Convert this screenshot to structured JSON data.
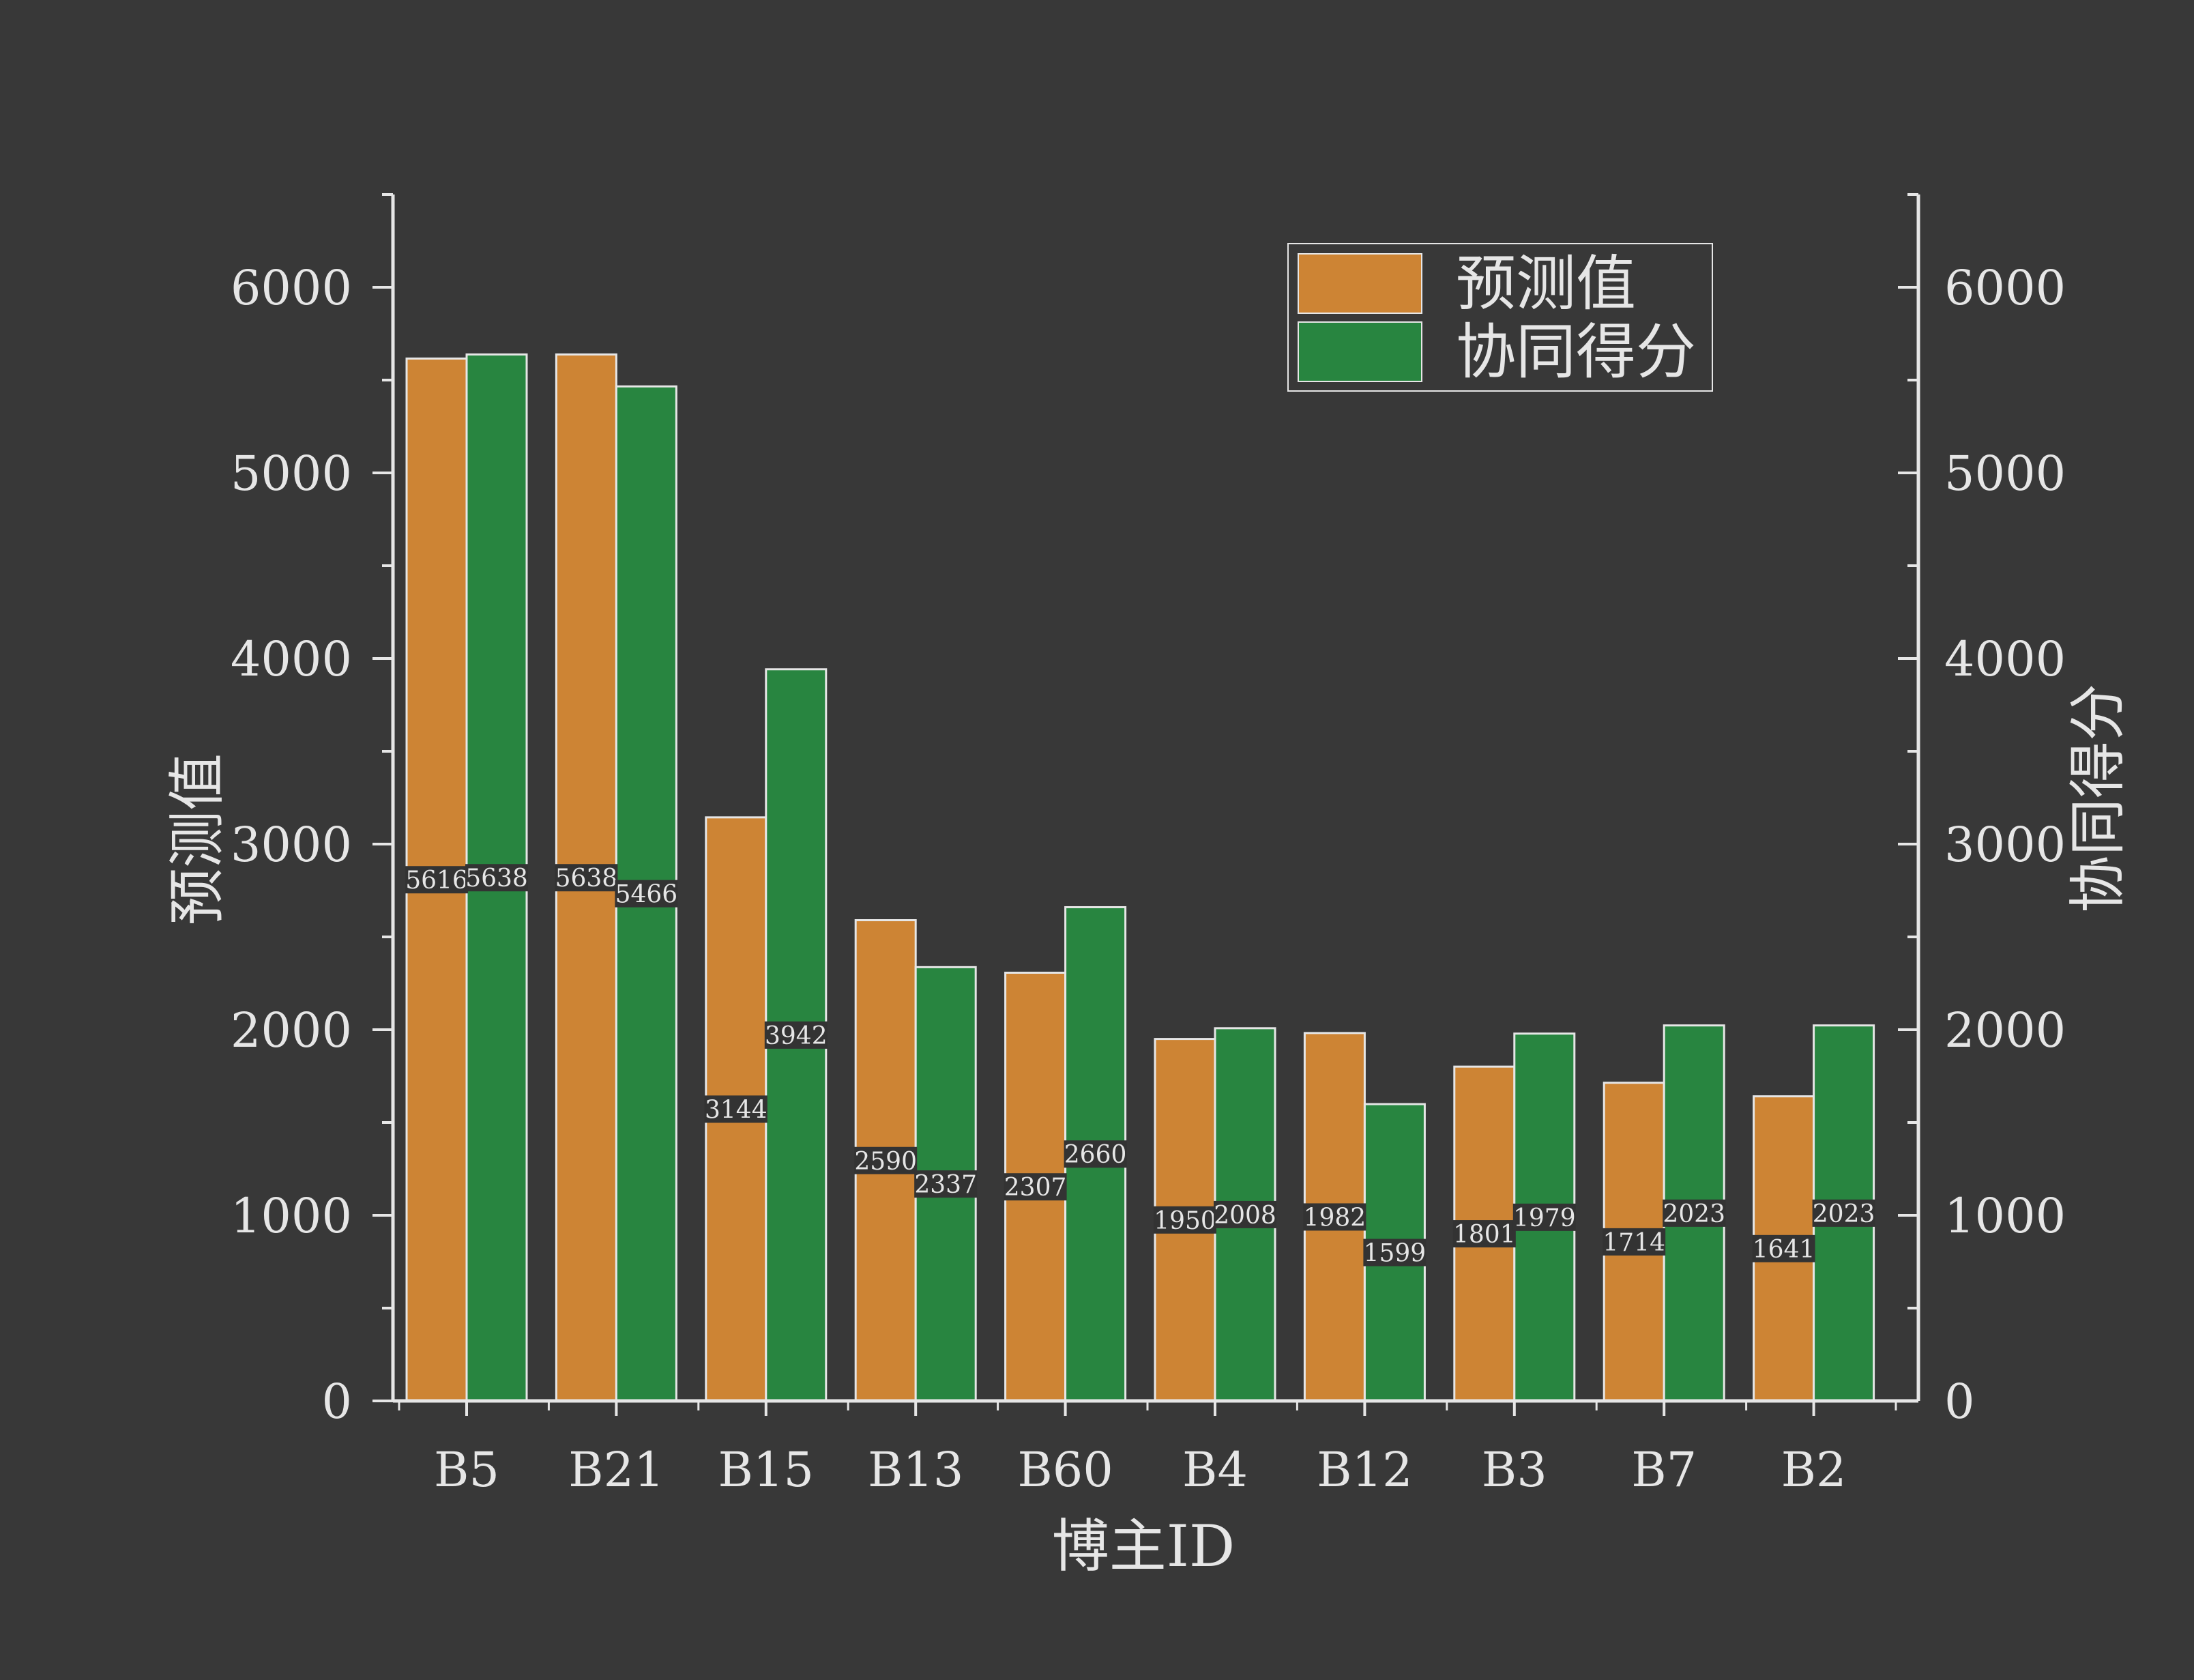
{
  "chart_data": {
    "type": "bar",
    "categories": [
      "B5",
      "B21",
      "B15",
      "B13",
      "B60",
      "B4",
      "B12",
      "B3",
      "B7",
      "B2"
    ],
    "series": [
      {
        "name": "预测值",
        "values": [
          5616,
          5638,
          3144,
          2590,
          2307,
          1950,
          1982,
          1801,
          1714,
          1641
        ],
        "color": "#cd8434"
      },
      {
        "name": "协同得分",
        "values": [
          5638,
          5466,
          3942,
          2337,
          2660,
          2008,
          1599,
          1979,
          2023,
          2023
        ],
        "color": "#288540"
      }
    ],
    "xlabel": "博主ID",
    "ylabel_left": "预测值",
    "ylabel_right": "协同得分",
    "ylim": [
      0,
      6500
    ],
    "yticks": [
      "0",
      "1000",
      "2000",
      "3000",
      "4000",
      "5000",
      "6000"
    ],
    "legend_position": "top-right",
    "grid": false,
    "background": "#383838",
    "foreground": "#e6e6e6",
    "label_box": "#333333"
  }
}
